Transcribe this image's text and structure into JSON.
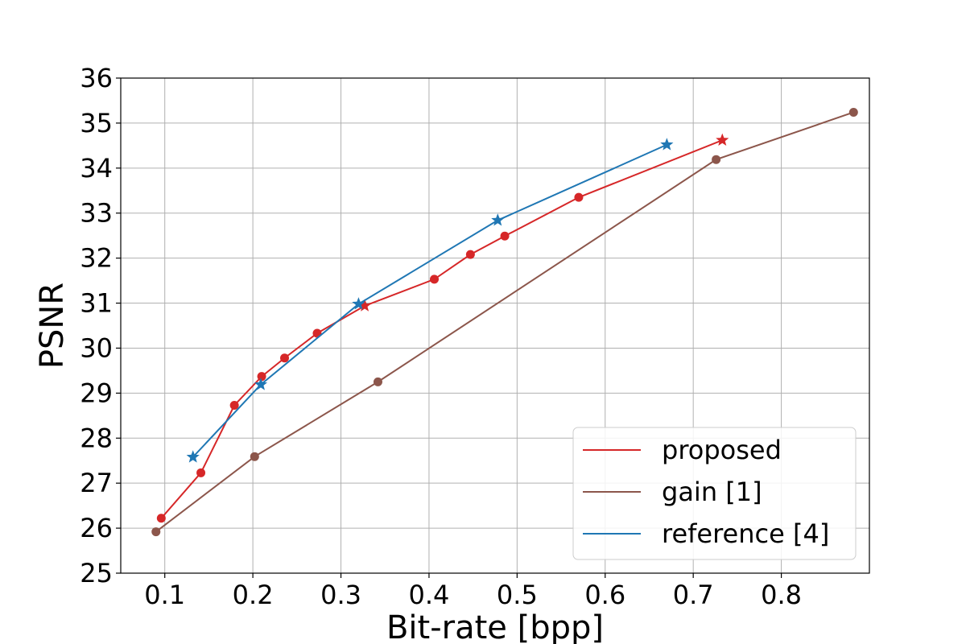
{
  "chart_data": {
    "type": "line",
    "xlabel": "Bit-rate [bpp]",
    "ylabel": "PSNR",
    "xlim": [
      0.05,
      0.9
    ],
    "ylim": [
      25,
      36
    ],
    "xticks": [
      "0.1",
      "0.2",
      "0.3",
      "0.4",
      "0.5",
      "0.6",
      "0.7",
      "0.8"
    ],
    "yticks": [
      "25",
      "26",
      "27",
      "28",
      "29",
      "30",
      "31",
      "32",
      "33",
      "34",
      "35",
      "36"
    ],
    "grid": true,
    "legend_position": "bottom-right",
    "series": [
      {
        "name": "proposed",
        "color": "#d62728",
        "points": [
          {
            "x": 0.096,
            "y": 26.22,
            "marker": "circle"
          },
          {
            "x": 0.141,
            "y": 27.23,
            "marker": "circle"
          },
          {
            "x": 0.179,
            "y": 28.73,
            "marker": "circle"
          },
          {
            "x": 0.21,
            "y": 29.37,
            "marker": "circle"
          },
          {
            "x": 0.236,
            "y": 29.78,
            "marker": "circle"
          },
          {
            "x": 0.273,
            "y": 30.33,
            "marker": "circle"
          },
          {
            "x": 0.327,
            "y": 30.94,
            "marker": "star"
          },
          {
            "x": 0.406,
            "y": 31.53,
            "marker": "circle"
          },
          {
            "x": 0.447,
            "y": 32.08,
            "marker": "circle"
          },
          {
            "x": 0.486,
            "y": 32.49,
            "marker": "circle"
          },
          {
            "x": 0.57,
            "y": 33.35,
            "marker": "circle"
          },
          {
            "x": 0.733,
            "y": 34.62,
            "marker": "star"
          }
        ]
      },
      {
        "name": "gain [1]",
        "color": "#8c564b",
        "points": [
          {
            "x": 0.09,
            "y": 25.92,
            "marker": "circle"
          },
          {
            "x": 0.202,
            "y": 27.59,
            "marker": "circle"
          },
          {
            "x": 0.342,
            "y": 29.25,
            "marker": "circle"
          },
          {
            "x": 0.726,
            "y": 34.19,
            "marker": "circle"
          },
          {
            "x": 0.882,
            "y": 35.24,
            "marker": "circle"
          }
        ]
      },
      {
        "name": "reference [4]",
        "color": "#1f77b4",
        "points": [
          {
            "x": 0.132,
            "y": 27.58,
            "marker": "star"
          },
          {
            "x": 0.209,
            "y": 29.19,
            "marker": "star"
          },
          {
            "x": 0.32,
            "y": 30.98,
            "marker": "star"
          },
          {
            "x": 0.478,
            "y": 32.84,
            "marker": "star"
          },
          {
            "x": 0.67,
            "y": 34.52,
            "marker": "star"
          }
        ]
      }
    ]
  }
}
